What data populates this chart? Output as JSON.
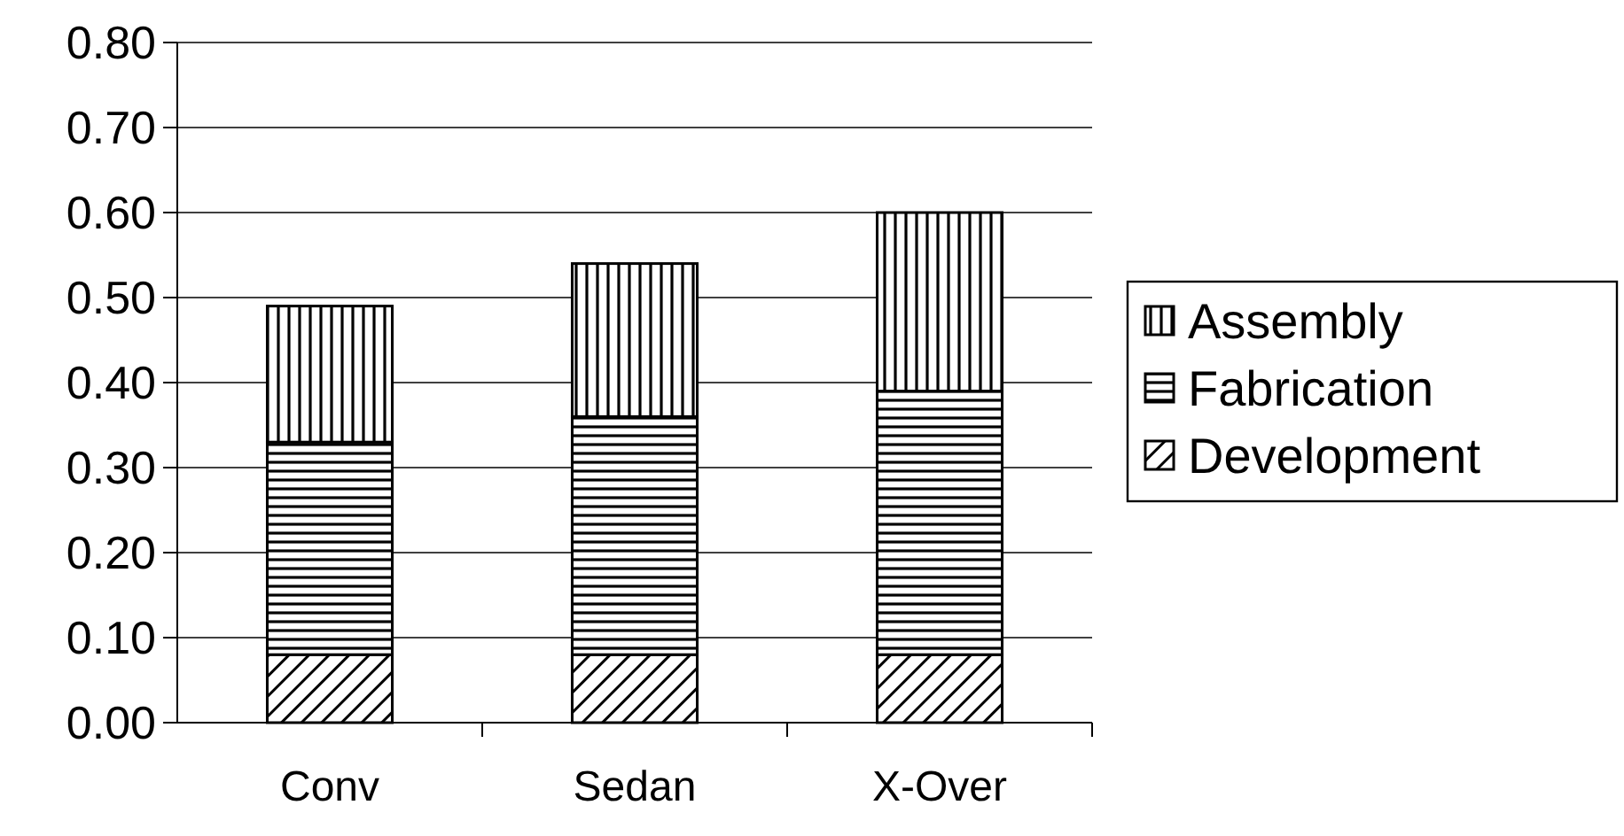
{
  "chart_data": {
    "type": "bar",
    "stacked": true,
    "categories": [
      "Conv",
      "Sedan",
      "X-Over"
    ],
    "series": [
      {
        "name": "Development",
        "color": "#000000",
        "values": [
          0.08,
          0.08,
          0.08
        ]
      },
      {
        "name": "Fabrication",
        "color": "#000000",
        "values": [
          0.25,
          0.28,
          0.31
        ]
      },
      {
        "name": "Assembly",
        "color": "#000000",
        "values": [
          0.16,
          0.18,
          0.21
        ]
      }
    ],
    "ylim": [
      0,
      0.8
    ],
    "yticks": [
      {
        "value": 0,
        "label": "0.00"
      },
      {
        "value": 0.1,
        "label": "0.10"
      },
      {
        "value": 0.2,
        "label": "0.20"
      },
      {
        "value": 0.3,
        "label": "0.30"
      },
      {
        "value": 0.4,
        "label": "0.40"
      },
      {
        "value": 0.5,
        "label": "0.50"
      },
      {
        "value": 0.6,
        "label": "0.60"
      },
      {
        "value": 0.7,
        "label": "0.70"
      },
      {
        "value": 0.8,
        "label": "0.80"
      }
    ],
    "grid": "y",
    "legend": "right"
  }
}
